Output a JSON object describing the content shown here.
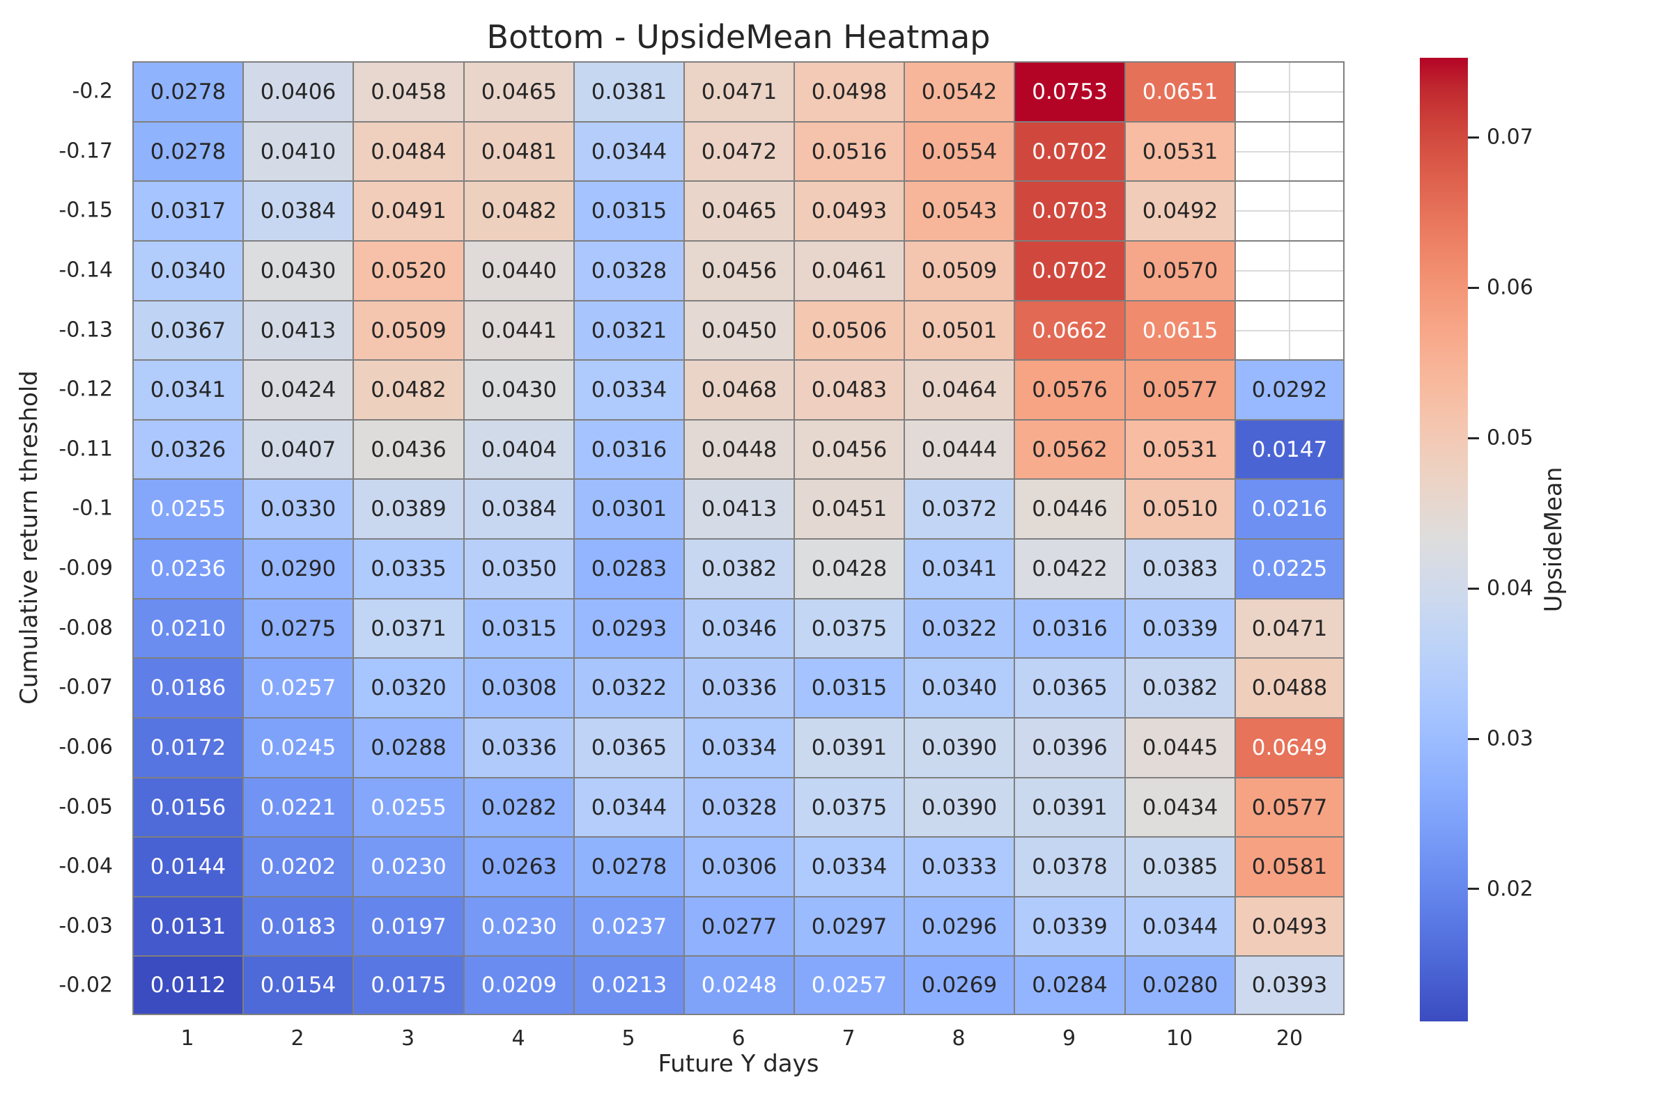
{
  "title": "Bottom - UpsideMean Heatmap",
  "colors": {
    "background": "#ffffff",
    "cell_border": "#7f7f7f",
    "empty_cell_gridline": "#d9d9d9",
    "text_dark": "#262626",
    "text_light": "#ffffff"
  },
  "chart_data": {
    "type": "heatmap",
    "title": "Bottom - UpsideMean Heatmap",
    "xlabel": "Future Y days",
    "ylabel": "Cumulative return threshold",
    "x_categories": [
      "1",
      "2",
      "3",
      "4",
      "5",
      "6",
      "7",
      "8",
      "9",
      "10",
      "20"
    ],
    "y_categories": [
      "-0.2",
      "-0.17",
      "-0.15",
      "-0.14",
      "-0.13",
      "-0.12",
      "-0.11",
      "-0.1",
      "-0.09",
      "-0.08",
      "-0.07",
      "-0.06",
      "-0.05",
      "-0.04",
      "-0.03",
      "-0.02"
    ],
    "values": [
      [
        "0.0278",
        "0.0406",
        "0.0458",
        "0.0465",
        "0.0381",
        "0.0471",
        "0.0498",
        "0.0542",
        "0.0753",
        "0.0651",
        null
      ],
      [
        "0.0278",
        "0.0410",
        "0.0484",
        "0.0481",
        "0.0344",
        "0.0472",
        "0.0516",
        "0.0554",
        "0.0702",
        "0.0531",
        null
      ],
      [
        "0.0317",
        "0.0384",
        "0.0491",
        "0.0482",
        "0.0315",
        "0.0465",
        "0.0493",
        "0.0543",
        "0.0703",
        "0.0492",
        null
      ],
      [
        "0.0340",
        "0.0430",
        "0.0520",
        "0.0440",
        "0.0328",
        "0.0456",
        "0.0461",
        "0.0509",
        "0.0702",
        "0.0570",
        null
      ],
      [
        "0.0367",
        "0.0413",
        "0.0509",
        "0.0441",
        "0.0321",
        "0.0450",
        "0.0506",
        "0.0501",
        "0.0662",
        "0.0615",
        null
      ],
      [
        "0.0341",
        "0.0424",
        "0.0482",
        "0.0430",
        "0.0334",
        "0.0468",
        "0.0483",
        "0.0464",
        "0.0576",
        "0.0577",
        "0.0292"
      ],
      [
        "0.0326",
        "0.0407",
        "0.0436",
        "0.0404",
        "0.0316",
        "0.0448",
        "0.0456",
        "0.0444",
        "0.0562",
        "0.0531",
        "0.0147"
      ],
      [
        "0.0255",
        "0.0330",
        "0.0389",
        "0.0384",
        "0.0301",
        "0.0413",
        "0.0451",
        "0.0372",
        "0.0446",
        "0.0510",
        "0.0216"
      ],
      [
        "0.0236",
        "0.0290",
        "0.0335",
        "0.0350",
        "0.0283",
        "0.0382",
        "0.0428",
        "0.0341",
        "0.0422",
        "0.0383",
        "0.0225"
      ],
      [
        "0.0210",
        "0.0275",
        "0.0371",
        "0.0315",
        "0.0293",
        "0.0346",
        "0.0375",
        "0.0322",
        "0.0316",
        "0.0339",
        "0.0471"
      ],
      [
        "0.0186",
        "0.0257",
        "0.0320",
        "0.0308",
        "0.0322",
        "0.0336",
        "0.0315",
        "0.0340",
        "0.0365",
        "0.0382",
        "0.0488"
      ],
      [
        "0.0172",
        "0.0245",
        "0.0288",
        "0.0336",
        "0.0365",
        "0.0334",
        "0.0391",
        "0.0390",
        "0.0396",
        "0.0445",
        "0.0649"
      ],
      [
        "0.0156",
        "0.0221",
        "0.0255",
        "0.0282",
        "0.0344",
        "0.0328",
        "0.0375",
        "0.0390",
        "0.0391",
        "0.0434",
        "0.0577"
      ],
      [
        "0.0144",
        "0.0202",
        "0.0230",
        "0.0263",
        "0.0278",
        "0.0306",
        "0.0334",
        "0.0333",
        "0.0378",
        "0.0385",
        "0.0581"
      ],
      [
        "0.0131",
        "0.0183",
        "0.0197",
        "0.0230",
        "0.0237",
        "0.0277",
        "0.0297",
        "0.0296",
        "0.0339",
        "0.0344",
        "0.0493"
      ],
      [
        "0.0112",
        "0.0154",
        "0.0175",
        "0.0209",
        "0.0213",
        "0.0248",
        "0.0257",
        "0.0269",
        "0.0284",
        "0.0280",
        "0.0393"
      ]
    ],
    "vmin": 0.0112,
    "vmax": 0.0753,
    "colorbar": {
      "label": "UpsideMean",
      "tick_labels": [
        "0.07",
        "0.06",
        "0.05",
        "0.04",
        "0.03",
        "0.02"
      ],
      "tick_values": [
        0.07,
        0.06,
        0.05,
        0.04,
        0.03,
        0.02
      ],
      "colormap": "coolwarm",
      "stops": [
        "#3b4cc0",
        "#445acc",
        "#4d68d7",
        "#5775e1",
        "#6282ea",
        "#6c8ef1",
        "#779af7",
        "#82a5fb",
        "#8db0fe",
        "#98b9ff",
        "#a3c2ff",
        "#aec9fd",
        "#b8d0f9",
        "#c2d5f4",
        "#ccd9ee",
        "#d5dbe6",
        "#dddddd",
        "#e5d8d1",
        "#ecd3c5",
        "#f1ccb9",
        "#f5c4ad",
        "#f7bba0",
        "#f7b194",
        "#f7a687",
        "#f49a7b",
        "#f18d6f",
        "#ec7f63",
        "#e57058",
        "#de604d",
        "#d55042",
        "#cb3e38",
        "#c0282f",
        "#b40426"
      ]
    },
    "annotated": true,
    "legend_position": "right-colorbar",
    "grid": false
  }
}
